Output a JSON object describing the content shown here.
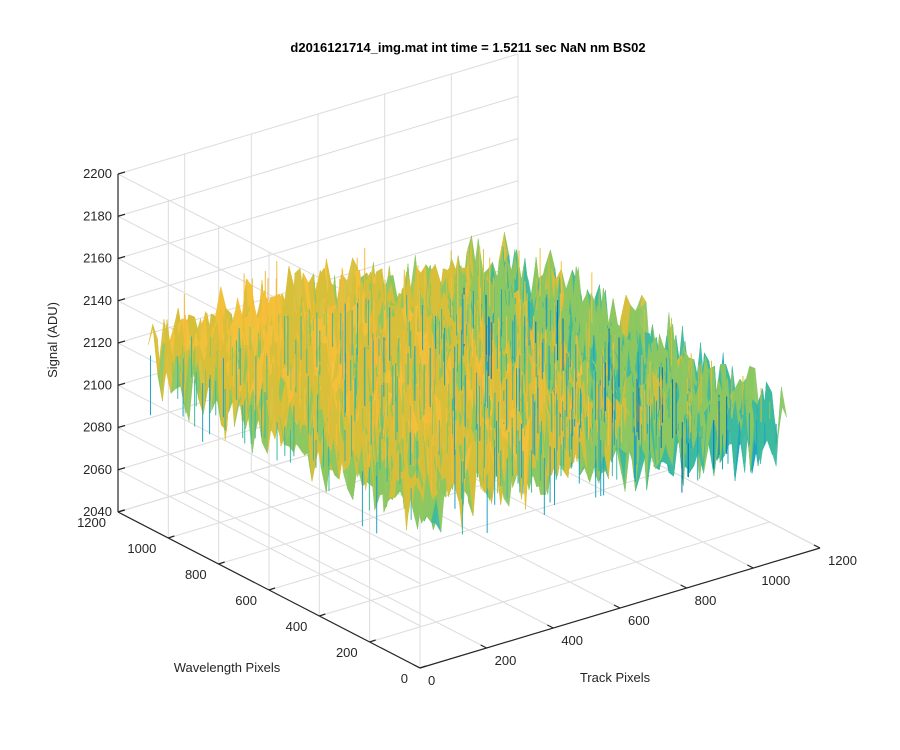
{
  "chart_data": {
    "type": "surface",
    "title": "d2016121714_img.mat int time = 1.5211 sec  NaN nm BS02",
    "xlabel": "Track Pixels",
    "ylabel": "Wavelength Pixels",
    "zlabel": "Signal (ADU)",
    "xlim": [
      0,
      1200
    ],
    "ylim": [
      0,
      1200
    ],
    "zlim": [
      2040,
      2200
    ],
    "xticks": [
      "0",
      "200",
      "400",
      "600",
      "800",
      "1000",
      "1200"
    ],
    "yticks": [
      "0",
      "200",
      "400",
      "600",
      "800",
      "1000",
      "1200"
    ],
    "zticks": [
      "2040",
      "2060",
      "2080",
      "2100",
      "2120",
      "2140",
      "2160",
      "2180",
      "2200"
    ],
    "grid": true,
    "surface": {
      "x_range": [
        0,
        1100
      ],
      "y_range": [
        0,
        1080
      ],
      "mean_signal": 2118,
      "noise_amplitude": 22,
      "colormap": [
        "#0072BD",
        "#1FA3C2",
        "#3DBA9E",
        "#8CC761",
        "#D8BF3A",
        "#F3C13A",
        "#F6B93B"
      ]
    }
  }
}
